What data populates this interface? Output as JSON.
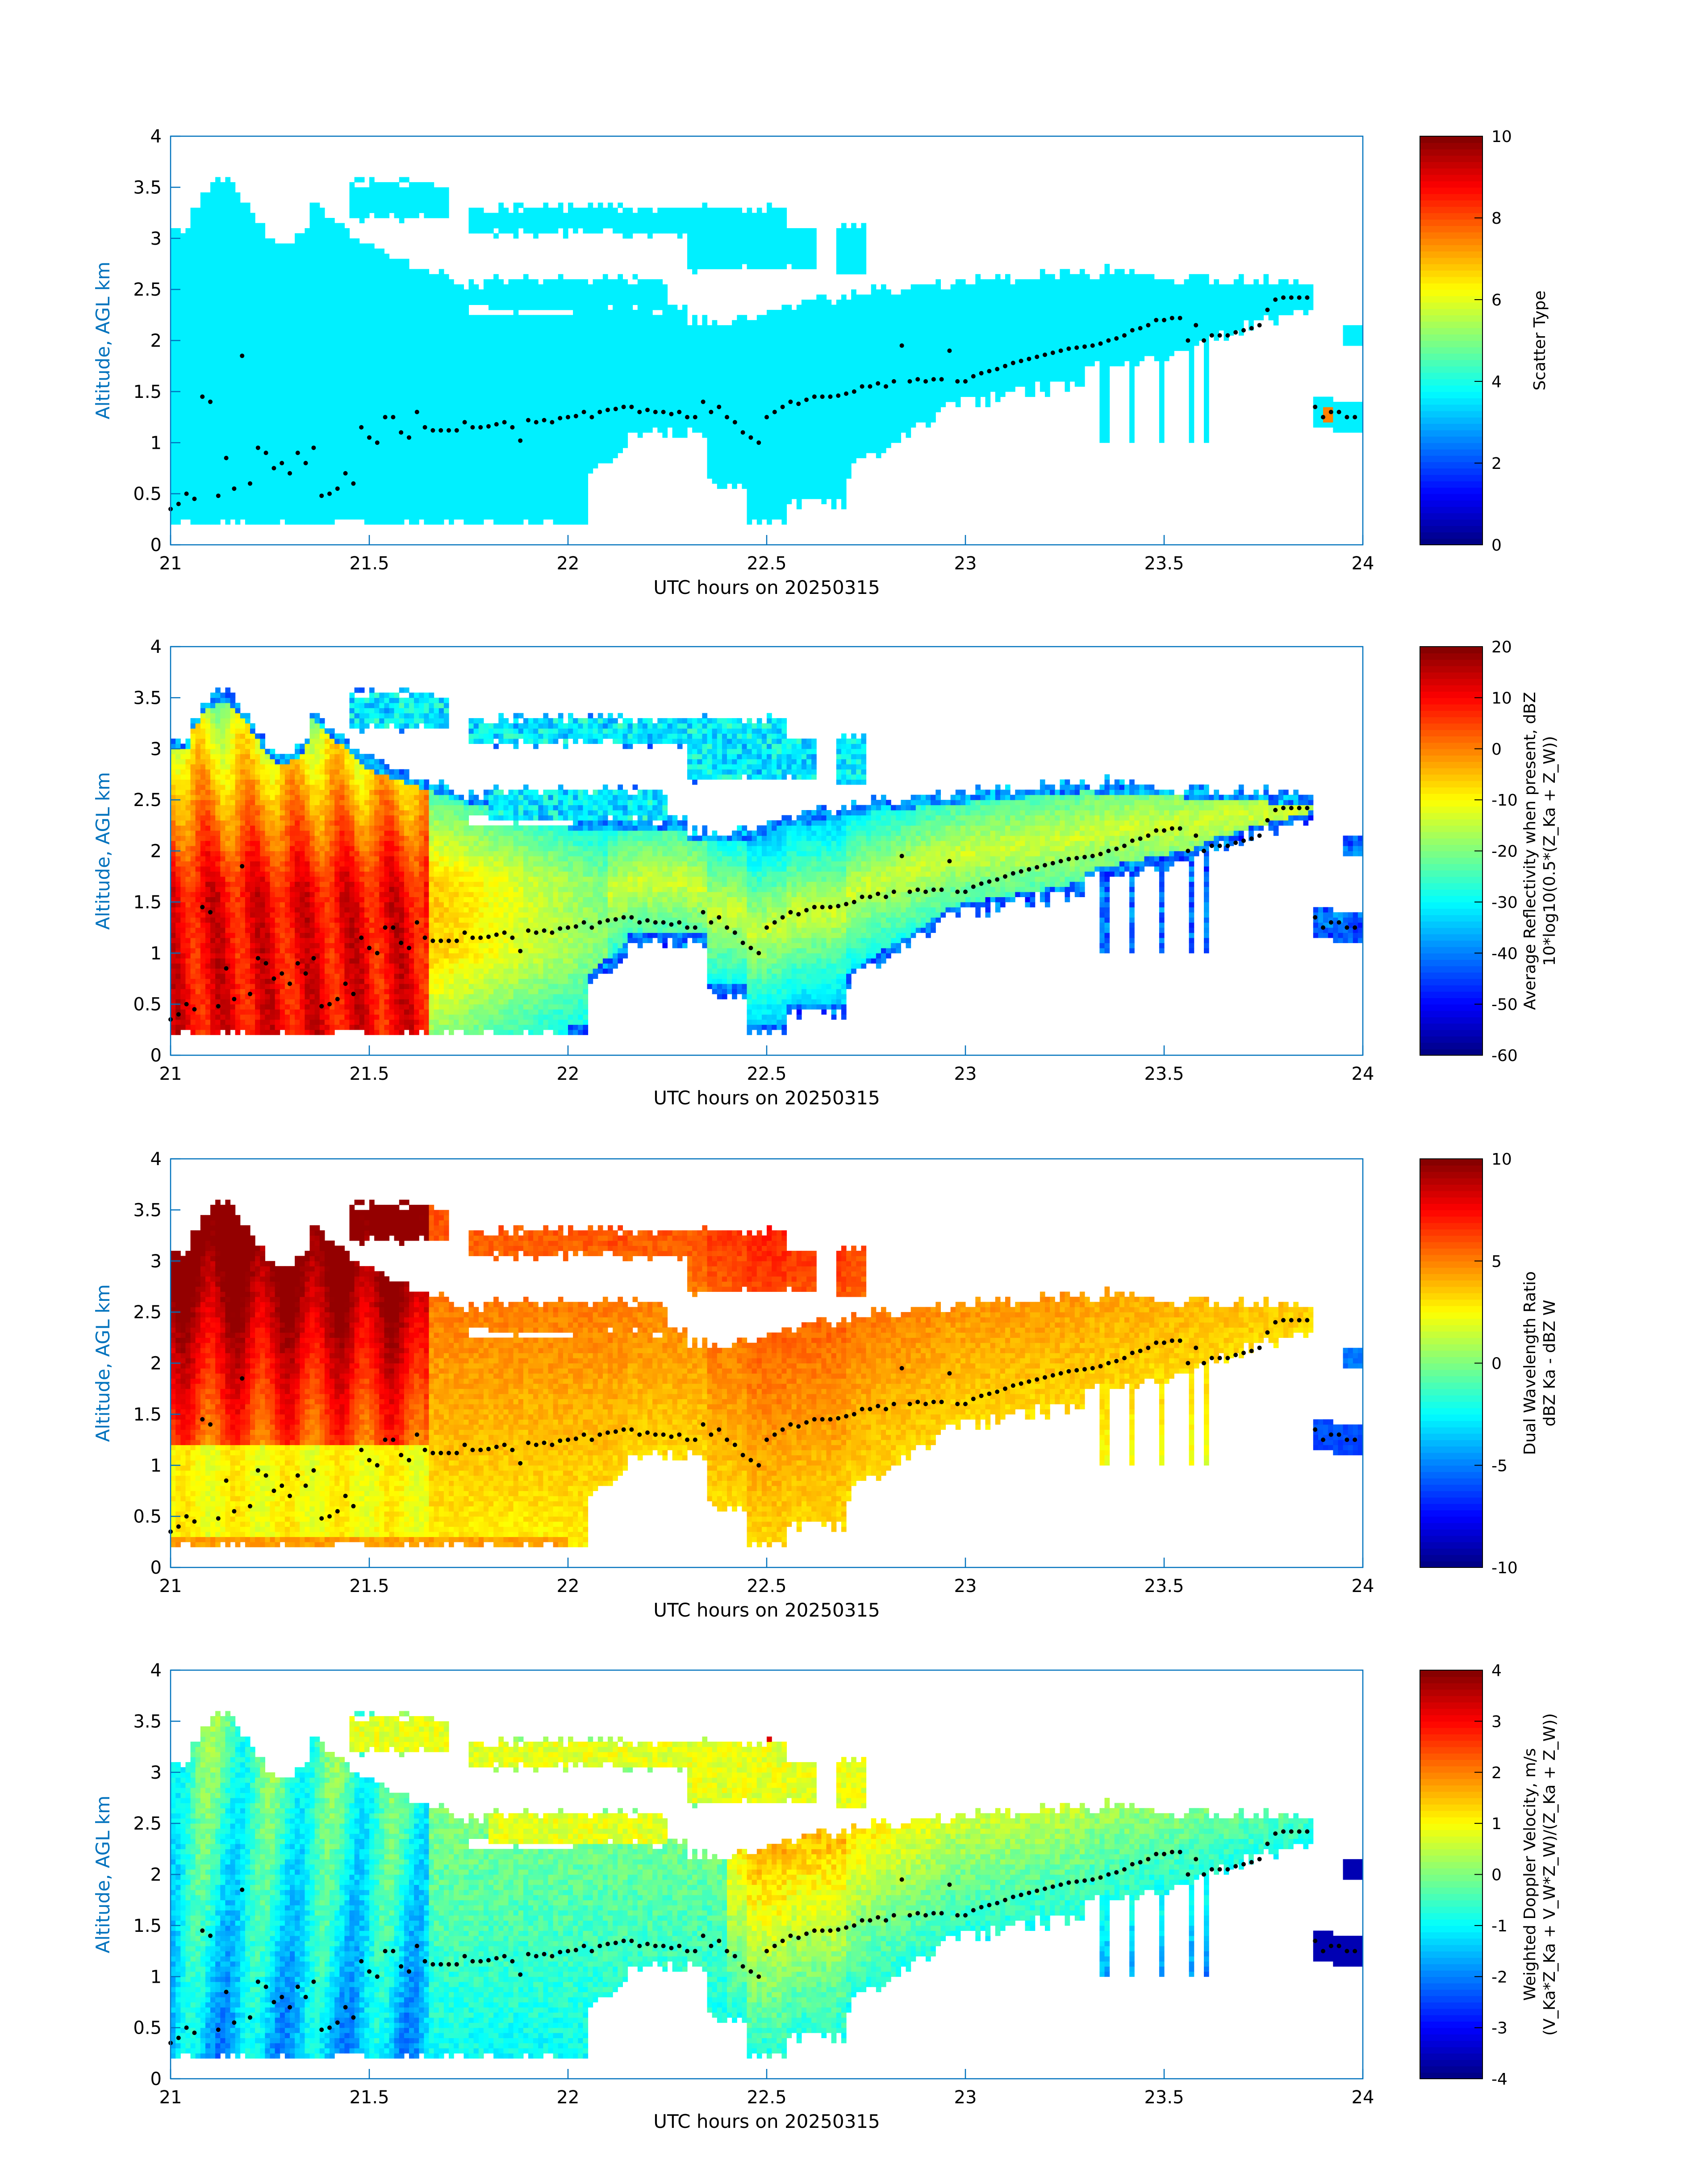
{
  "figure": {
    "xlabel": "UTC hours on 20250315",
    "ylabel": "Altitude, AGL km"
  },
  "chart_data": [
    {
      "type": "heatmap",
      "name": "scatter-type",
      "x_ticks": [
        "21",
        "21.5",
        "22",
        "22.5",
        "23",
        "23.5",
        "24"
      ],
      "y_ticks": [
        "0",
        "0.5",
        "1",
        "1.5",
        "2",
        "2.5",
        "3",
        "3.5",
        "4"
      ],
      "xlim": [
        21,
        24
      ],
      "ylim": [
        0,
        4
      ],
      "xlabel": "UTC hours on 20250315",
      "ylabel": "Altitude, AGL km",
      "colorbar": {
        "label_lines": [
          "Scatter Type"
        ],
        "ticks": [
          "0",
          "2",
          "4",
          "6",
          "8",
          "10"
        ],
        "range": [
          0,
          10
        ],
        "colormap": "jet"
      },
      "field": "scatter_type"
    },
    {
      "type": "heatmap",
      "name": "average-reflectivity",
      "x_ticks": [
        "21",
        "21.5",
        "22",
        "22.5",
        "23",
        "23.5",
        "24"
      ],
      "y_ticks": [
        "0",
        "0.5",
        "1",
        "1.5",
        "2",
        "2.5",
        "3",
        "3.5",
        "4"
      ],
      "xlim": [
        21,
        24
      ],
      "ylim": [
        0,
        4
      ],
      "xlabel": "UTC hours on 20250315",
      "ylabel": "Altitude, AGL km",
      "colorbar": {
        "label_lines": [
          "Average Reflectivity when present, dBZ",
          "10*log10(0.5*(Z_Ka + Z_W))"
        ],
        "ticks": [
          "-60",
          "-50",
          "-40",
          "-30",
          "-20",
          "-10",
          "0",
          "10",
          "20"
        ],
        "range": [
          -60,
          20
        ],
        "colormap": "jet"
      },
      "field": "reflectivity"
    },
    {
      "type": "heatmap",
      "name": "dual-wavelength-ratio",
      "x_ticks": [
        "21",
        "21.5",
        "22",
        "22.5",
        "23",
        "23.5",
        "24"
      ],
      "y_ticks": [
        "0",
        "0.5",
        "1",
        "1.5",
        "2",
        "2.5",
        "3",
        "3.5",
        "4"
      ],
      "xlim": [
        21,
        24
      ],
      "ylim": [
        0,
        4
      ],
      "xlabel": "UTC hours on 20250315",
      "ylabel": "Altitude, AGL km",
      "colorbar": {
        "label_lines": [
          "Dual Wavelength Ratio",
          "dBZ Ka - dBZ W"
        ],
        "ticks": [
          "-10",
          "-5",
          "0",
          "5",
          "10"
        ],
        "range": [
          -10,
          10
        ],
        "colormap": "jet"
      },
      "field": "dwr"
    },
    {
      "type": "heatmap",
      "name": "weighted-doppler-velocity",
      "x_ticks": [
        "21",
        "21.5",
        "22",
        "22.5",
        "23",
        "23.5",
        "24"
      ],
      "y_ticks": [
        "0",
        "0.5",
        "1",
        "1.5",
        "2",
        "2.5",
        "3",
        "3.5",
        "4"
      ],
      "xlim": [
        21,
        24
      ],
      "ylim": [
        0,
        4
      ],
      "xlabel": "UTC hours on 20250315",
      "ylabel": "Altitude, AGL km",
      "colorbar": {
        "label_lines": [
          "Weighted Doppler Velocity, m/s",
          "(V_Ka*Z_Ka + V_W*Z_W)/(Z_Ka + Z_W))"
        ],
        "ticks": [
          "-4",
          "-3",
          "-2",
          "-1",
          "0",
          "1",
          "2",
          "3",
          "4"
        ],
        "range": [
          -4,
          4
        ],
        "colormap": "jet"
      },
      "field": "velocity"
    }
  ],
  "cloud_base_dots": {
    "times": [
      21.0,
      21.02,
      21.04,
      21.06,
      21.08,
      21.1,
      21.12,
      21.14,
      21.16,
      21.18,
      21.2,
      21.22,
      21.24,
      21.26,
      21.28,
      21.3,
      21.32,
      21.34,
      21.36,
      21.38,
      21.4,
      21.42,
      21.44,
      21.46,
      21.48,
      21.5,
      21.52,
      21.54,
      21.56,
      21.58,
      21.6,
      21.62,
      21.64,
      21.66,
      21.68,
      21.7,
      21.72,
      21.74,
      21.76,
      21.78,
      21.8,
      21.82,
      21.84,
      21.86,
      21.88,
      21.9,
      21.92,
      21.94,
      21.96,
      21.98,
      22.0,
      22.02,
      22.04,
      22.06,
      22.08,
      22.1,
      22.12,
      22.14,
      22.16,
      22.18,
      22.2,
      22.22,
      22.24,
      22.26,
      22.28,
      22.3,
      22.32,
      22.34,
      22.36,
      22.38,
      22.4,
      22.42,
      22.44,
      22.46,
      22.48,
      22.5,
      22.52,
      22.54,
      22.56,
      22.58,
      22.6,
      22.62,
      22.64,
      22.66,
      22.68,
      22.7,
      22.72,
      22.74,
      22.76,
      22.78,
      22.8,
      22.82,
      22.84,
      22.86,
      22.88,
      22.9,
      22.92,
      22.94,
      22.96,
      22.98,
      23.0,
      23.02,
      23.04,
      23.06,
      23.08,
      23.1,
      23.12,
      23.14,
      23.16,
      23.18,
      23.2,
      23.22,
      23.24,
      23.26,
      23.28,
      23.3,
      23.32,
      23.34,
      23.36,
      23.38,
      23.4,
      23.42,
      23.44,
      23.46,
      23.48,
      23.5,
      23.52,
      23.54,
      23.56,
      23.58,
      23.6,
      23.62,
      23.64,
      23.66,
      23.68,
      23.7,
      23.72,
      23.74,
      23.76,
      23.78,
      23.8,
      23.82,
      23.84,
      23.86,
      23.88,
      23.9,
      23.92,
      23.94,
      23.96,
      23.98
    ],
    "heights_km": [
      0.35,
      0.4,
      0.5,
      0.45,
      1.45,
      1.4,
      0.48,
      0.85,
      0.55,
      1.85,
      0.6,
      0.95,
      0.9,
      0.75,
      0.8,
      0.7,
      0.9,
      0.8,
      0.95,
      0.48,
      0.5,
      0.55,
      0.7,
      0.6,
      1.15,
      1.05,
      1.0,
      1.25,
      1.25,
      1.1,
      1.05,
      1.3,
      1.15,
      1.12,
      1.12,
      1.12,
      1.12,
      1.2,
      1.15,
      1.15,
      1.16,
      1.18,
      1.2,
      1.15,
      1.02,
      1.22,
      1.2,
      1.22,
      1.2,
      1.24,
      1.25,
      1.26,
      1.3,
      1.25,
      1.3,
      1.32,
      1.33,
      1.35,
      1.35,
      1.3,
      1.32,
      1.3,
      1.3,
      1.28,
      1.3,
      1.25,
      1.25,
      1.4,
      1.3,
      1.35,
      1.25,
      1.2,
      1.1,
      1.05,
      1.0,
      1.25,
      1.3,
      1.35,
      1.4,
      1.38,
      1.42,
      1.45,
      1.45,
      1.45,
      1.46,
      1.48,
      1.5,
      1.55,
      1.55,
      1.58,
      1.55,
      1.6,
      1.95,
      1.6,
      1.62,
      1.6,
      1.62,
      1.62,
      1.9,
      1.6,
      1.6,
      1.65,
      1.68,
      1.7,
      1.72,
      1.75,
      1.78,
      1.8,
      1.82,
      1.84,
      1.86,
      1.88,
      1.9,
      1.92,
      1.93,
      1.94,
      1.95,
      1.97,
      2.0,
      2.02,
      2.05,
      2.1,
      2.12,
      2.15,
      2.2,
      2.2,
      2.22,
      2.22,
      2.0,
      2.15,
      2.0,
      2.05,
      2.05,
      2.05,
      2.08,
      2.1,
      2.12,
      2.15,
      2.3,
      2.4,
      2.42,
      2.42,
      2.42,
      2.42,
      1.35,
      1.25,
      1.3,
      1.3,
      1.25,
      1.25
    ]
  }
}
